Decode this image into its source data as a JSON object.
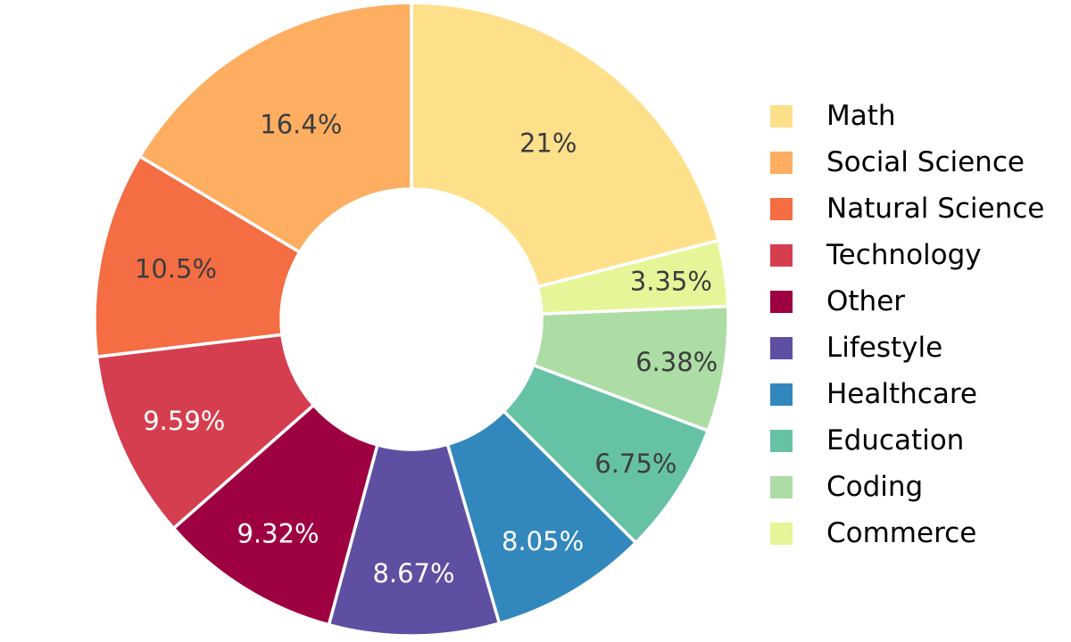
{
  "background_color": "#ffffff",
  "chart_data": {
    "type": "pie",
    "subtype": "donut",
    "title": "",
    "legend_position": "right",
    "start_angle_deg": 90,
    "direction": "counterclockwise",
    "first_slice_position": "top-right",
    "hole_ratio": 0.41,
    "grid": false,
    "slices": [
      {
        "label": "Math",
        "value": 21.0,
        "pct_label": "21%",
        "color": "#fee08b",
        "pct_label_color": "#3d3d3d"
      },
      {
        "label": "Social Science",
        "value": 16.4,
        "pct_label": "16.4%",
        "color": "#fdae61",
        "pct_label_color": "#3d3d3d"
      },
      {
        "label": "Natural Science",
        "value": 10.5,
        "pct_label": "10.5%",
        "color": "#f46d43",
        "pct_label_color": "#3d3d3d"
      },
      {
        "label": "Technology",
        "value": 9.59,
        "pct_label": "9.59%",
        "color": "#d53e4f",
        "pct_label_color": "#ffffff"
      },
      {
        "label": "Other",
        "value": 9.32,
        "pct_label": "9.32%",
        "color": "#9e0142",
        "pct_label_color": "#ffffff"
      },
      {
        "label": "Lifestyle",
        "value": 8.67,
        "pct_label": "8.67%",
        "color": "#5e4fa2",
        "pct_label_color": "#ffffff"
      },
      {
        "label": "Healthcare",
        "value": 8.05,
        "pct_label": "8.05%",
        "color": "#3288bd",
        "pct_label_color": "#ffffff"
      },
      {
        "label": "Education",
        "value": 6.75,
        "pct_label": "6.75%",
        "color": "#66c2a5",
        "pct_label_color": "#3d3d3d"
      },
      {
        "label": "Coding",
        "value": 6.38,
        "pct_label": "6.38%",
        "color": "#abdda4",
        "pct_label_color": "#3d3d3d"
      },
      {
        "label": "Commerce",
        "value": 3.35,
        "pct_label": "3.35%",
        "color": "#e6f598",
        "pct_label_color": "#3d3d3d"
      }
    ]
  }
}
